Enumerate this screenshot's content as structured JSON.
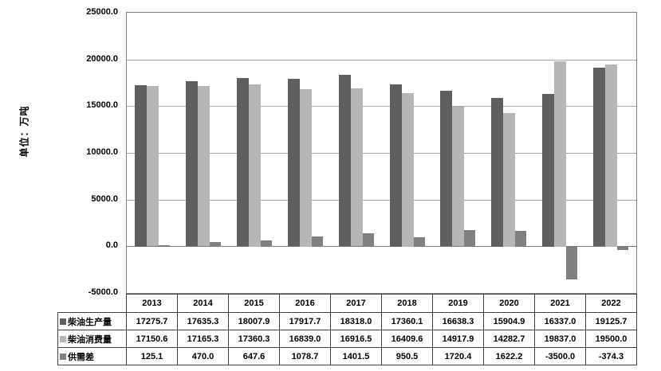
{
  "chart_data": {
    "type": "bar",
    "title": "",
    "unit_label": "单位：万吨",
    "categories": [
      "2013",
      "2014",
      "2015",
      "2016",
      "2017",
      "2018",
      "2019",
      "2020",
      "2021",
      "2022"
    ],
    "series": [
      {
        "key": "production",
        "name": "柴油生产量",
        "color": "#5f5f5f",
        "values": [
          17275.7,
          17635.3,
          18007.9,
          17917.7,
          18318.0,
          17360.1,
          16638.3,
          15904.9,
          16337.0,
          19125.7
        ]
      },
      {
        "key": "consumption",
        "name": "柴油消费量",
        "color": "#b6b6b6",
        "values": [
          17150.6,
          17165.3,
          17360.3,
          16839.0,
          16916.5,
          16409.6,
          14917.9,
          14282.7,
          19837.0,
          19500.0
        ]
      },
      {
        "key": "gap",
        "name": "供需差",
        "color": "#808080",
        "values": [
          125.1,
          470.0,
          647.6,
          1078.7,
          1401.5,
          950.5,
          1720.4,
          1622.2,
          -3500.0,
          -374.3
        ]
      }
    ],
    "ylim": [
      -5000,
      25000
    ],
    "y_tick_labels": [
      "25000.0",
      "20000.0",
      "15000.0",
      "10000.0",
      "5000.0",
      "0.0",
      "-5000.0"
    ],
    "y_tick_values": [
      25000,
      20000,
      15000,
      10000,
      5000,
      0,
      -5000
    ],
    "grid": true,
    "legend_position": "data-table-left",
    "colors": {
      "grid": "#a6a6a6",
      "axis": "#808080",
      "table_border": "#404040"
    }
  }
}
